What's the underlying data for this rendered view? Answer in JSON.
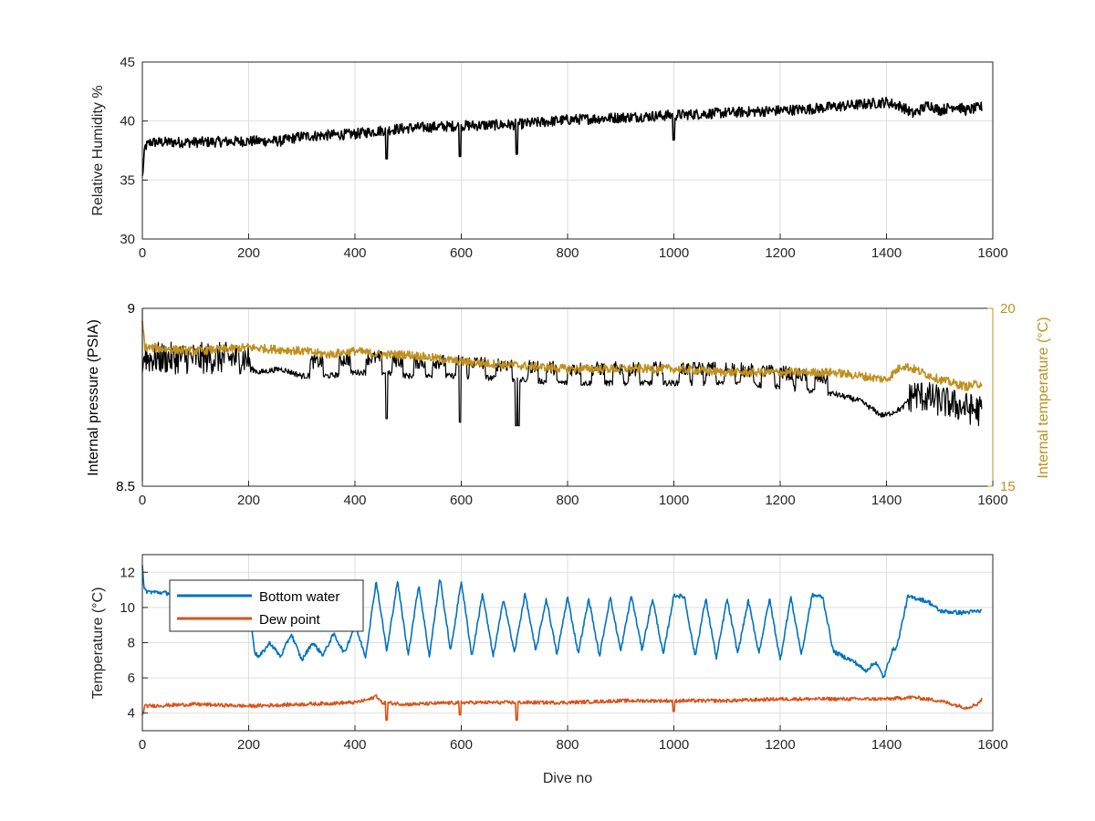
{
  "chart_data": [
    {
      "type": "line",
      "xlabel": "",
      "ylabel": "Relative Humidity %",
      "xlim": [
        0,
        1600
      ],
      "ylim": [
        30,
        45
      ],
      "xticks": [
        0,
        200,
        400,
        600,
        800,
        1000,
        1200,
        1400,
        1600
      ],
      "yticks": [
        30,
        35,
        40,
        45
      ],
      "grid": true,
      "series": [
        {
          "color": "#000000",
          "noise": 0.45,
          "x": [
            0,
            5,
            15,
            100,
            200,
            260,
            300,
            350,
            400,
            450,
            500,
            550,
            600,
            700,
            800,
            900,
            1000,
            1100,
            1200,
            1250,
            1300,
            1350,
            1400,
            1430,
            1450,
            1480,
            1500,
            1530,
            1550,
            1580
          ],
          "y": [
            35.2,
            37.8,
            38.2,
            38.2,
            38.3,
            38.3,
            38.7,
            38.8,
            38.9,
            39.2,
            39.4,
            39.5,
            39.6,
            39.7,
            40.1,
            40.3,
            40.5,
            40.7,
            40.9,
            41.0,
            41.2,
            41.4,
            41.6,
            41.2,
            40.6,
            41.4,
            40.9,
            41.3,
            40.9,
            41.2
          ],
          "dips": [
            [
              460,
              36.8
            ],
            [
              598,
              37.0
            ],
            [
              705,
              37.2
            ],
            [
              1000,
              38.4
            ]
          ]
        }
      ]
    },
    {
      "type": "line",
      "xlabel": "",
      "ylabel": "Internal pressure (PSIA)",
      "y2label": "Internal temperature (°C)",
      "xlim": [
        0,
        1600
      ],
      "ylim": [
        8.5,
        9
      ],
      "y2lim": [
        15,
        20
      ],
      "xticks": [
        0,
        200,
        400,
        600,
        800,
        1000,
        1200,
        1400,
        1600
      ],
      "yticks": [
        8.5,
        9
      ],
      "y2ticks": [
        15,
        20
      ],
      "colors": {
        "left_axis": "#000000",
        "right_axis": "#c0901f"
      },
      "grid": true,
      "series": [
        {
          "axis": "left",
          "color": "#000000",
          "x": [
            0,
            3,
            10,
            100,
            200,
            205,
            220,
            260,
            300,
            350,
            400,
            450,
            500,
            550,
            600,
            700,
            800,
            900,
            1000,
            1100,
            1200,
            1250,
            1300,
            1350,
            1390,
            1400,
            1430,
            1450,
            1500,
            1550,
            1580
          ],
          "y": [
            8.82,
            8.87,
            8.86,
            8.86,
            8.86,
            8.83,
            8.82,
            8.83,
            8.81,
            8.81,
            8.82,
            8.82,
            8.81,
            8.81,
            8.81,
            8.8,
            8.79,
            8.79,
            8.79,
            8.79,
            8.78,
            8.77,
            8.76,
            8.74,
            8.7,
            8.7,
            8.72,
            8.76,
            8.74,
            8.72,
            8.71
          ],
          "dips": [
            [
              460,
              8.69
            ],
            [
              598,
              8.68
            ],
            [
              703,
              8.67
            ],
            [
              708,
              8.67
            ]
          ],
          "noise": 0.008,
          "band_ranges": [
            [
              3,
              205
            ],
            [
              1440,
              1580
            ]
          ],
          "band_amp": 0.045,
          "pulses": [
            [
              315,
              340
            ],
            [
              370,
              392
            ],
            [
              420,
              450
            ],
            [
              470,
              490
            ],
            [
              510,
              532
            ],
            [
              545,
              570
            ],
            [
              590,
              610
            ],
            [
              615,
              645
            ],
            [
              665,
              695
            ],
            [
              725,
              745
            ],
            [
              760,
              780
            ],
            [
              800,
              825
            ],
            [
              845,
              870
            ],
            [
              885,
              905
            ],
            [
              915,
              935
            ],
            [
              960,
              980
            ],
            [
              1010,
              1030
            ],
            [
              1035,
              1055
            ],
            [
              1060,
              1080
            ],
            [
              1095,
              1115
            ],
            [
              1125,
              1150
            ],
            [
              1165,
              1190
            ],
            [
              1200,
              1225
            ],
            [
              1230,
              1250
            ],
            [
              1265,
              1290
            ]
          ],
          "pulse_height": 0.04
        },
        {
          "axis": "right",
          "color": "#c0901f",
          "noise": 0.12,
          "x": [
            0,
            5,
            100,
            200,
            300,
            350,
            400,
            450,
            500,
            600,
            700,
            800,
            900,
            1000,
            1100,
            1200,
            1300,
            1350,
            1400,
            1430,
            1450,
            1500,
            1550,
            1580
          ],
          "y": [
            19.6,
            18.9,
            18.8,
            18.9,
            18.8,
            18.7,
            18.8,
            18.7,
            18.7,
            18.5,
            18.4,
            18.3,
            18.3,
            18.3,
            18.2,
            18.2,
            18.2,
            18.1,
            18.0,
            18.4,
            18.3,
            18.0,
            17.8,
            17.9
          ]
        }
      ]
    },
    {
      "type": "line",
      "xlabel": "Dive no",
      "ylabel": "Temperature (°C)",
      "xlim": [
        0,
        1600
      ],
      "ylim": [
        3,
        13
      ],
      "xticks": [
        0,
        200,
        400,
        600,
        800,
        1000,
        1200,
        1400,
        1600
      ],
      "yticks": [
        4,
        6,
        8,
        10,
        12
      ],
      "grid": true,
      "legend": "top-left",
      "series": [
        {
          "name": "Bottom water",
          "color": "#0072bd",
          "noise": 0.12,
          "x": [
            0,
            3,
            10,
            100,
            200,
            205,
            212,
            220,
            240,
            260,
            280,
            300,
            320,
            340,
            360,
            380,
            400,
            420,
            440,
            460,
            480,
            500,
            520,
            540,
            560,
            580,
            600,
            620,
            640,
            660,
            680,
            700,
            720,
            740,
            760,
            780,
            800,
            820,
            840,
            860,
            880,
            900,
            920,
            940,
            960,
            980,
            1000,
            1020,
            1040,
            1060,
            1080,
            1100,
            1120,
            1140,
            1160,
            1180,
            1200,
            1220,
            1240,
            1260,
            1280,
            1300,
            1320,
            1340,
            1360,
            1380,
            1395,
            1410,
            1420,
            1440,
            1460,
            1480,
            1500,
            1540,
            1580
          ],
          "y": [
            12.5,
            11.0,
            10.9,
            10.7,
            10.6,
            9.0,
            7.4,
            7.2,
            8.0,
            7.2,
            8.5,
            7.0,
            8.0,
            7.3,
            8.5,
            7.4,
            9.0,
            7.2,
            11.5,
            7.5,
            11.5,
            7.3,
            11.3,
            7.2,
            11.7,
            7.5,
            11.5,
            7.2,
            10.8,
            7.2,
            10.5,
            7.4,
            10.8,
            7.5,
            10.5,
            7.3,
            10.6,
            7.4,
            10.5,
            7.2,
            10.6,
            7.5,
            10.7,
            7.6,
            10.5,
            7.3,
            10.7,
            10.6,
            7.2,
            10.5,
            7.1,
            10.5,
            7.4,
            10.4,
            7.4,
            10.5,
            7.0,
            10.6,
            7.3,
            10.7,
            10.6,
            7.5,
            7.2,
            6.9,
            6.4,
            6.9,
            6.0,
            7.5,
            7.8,
            10.6,
            10.5,
            10.3,
            9.8,
            9.7,
            9.8
          ]
        },
        {
          "name": "Dew point",
          "color": "#d95319",
          "noise": 0.1,
          "x": [
            0,
            5,
            100,
            200,
            300,
            400,
            430,
            440,
            450,
            500,
            600,
            700,
            800,
            900,
            1000,
            1100,
            1200,
            1300,
            1400,
            1450,
            1500,
            1550,
            1570,
            1580
          ],
          "y": [
            3.9,
            4.4,
            4.5,
            4.4,
            4.5,
            4.6,
            4.8,
            5.0,
            4.6,
            4.5,
            4.6,
            4.6,
            4.6,
            4.7,
            4.7,
            4.7,
            4.8,
            4.8,
            4.8,
            4.9,
            4.7,
            4.3,
            4.5,
            4.8
          ],
          "dips": [
            [
              460,
              3.6
            ],
            [
              598,
              3.9
            ],
            [
              705,
              3.6
            ],
            [
              1000,
              4.1
            ]
          ]
        }
      ]
    }
  ]
}
